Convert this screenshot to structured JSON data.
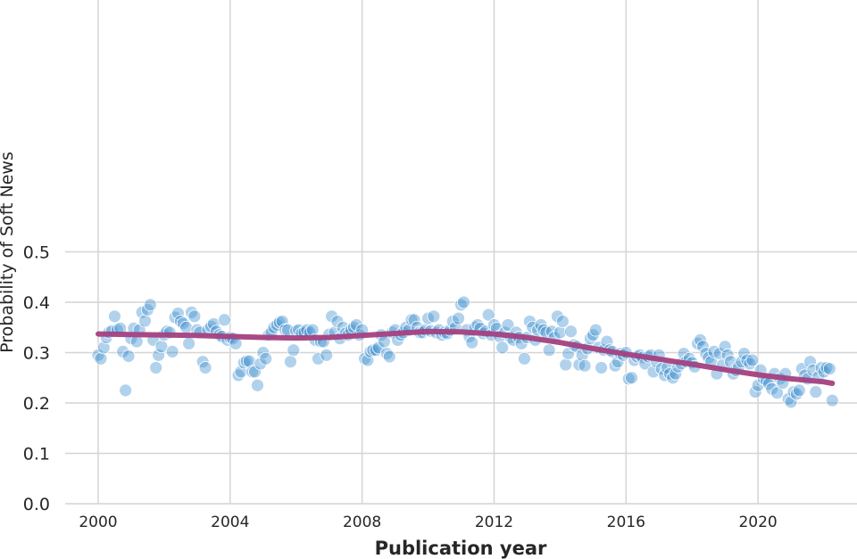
{
  "chart_data": {
    "type": "scatter",
    "title": "",
    "xlabel": "Publication year",
    "ylabel": "Probability of Soft News",
    "xlim": [
      1999.0,
      2023.0
    ],
    "ylim": [
      0.0,
      1.0
    ],
    "grid": true,
    "x_ticks": [
      2000,
      2004,
      2008,
      2012,
      2016,
      2020
    ],
    "y_ticks": [
      0.0,
      0.1,
      0.2,
      0.3,
      0.4,
      0.5
    ],
    "x_tick_labels": [
      "2000",
      "2004",
      "2008",
      "2012",
      "2016",
      "2020"
    ],
    "y_tick_labels": [
      "0.0",
      "0.1",
      "0.2",
      "0.3",
      "0.4",
      "0.5"
    ],
    "colors": {
      "points": "#3b8ed0",
      "trend": "#a4407f",
      "grid": "#d4d4d4"
    },
    "series": [
      {
        "type": "scatter",
        "x": [
          2000.0,
          2000.08,
          2000.17,
          2000.25,
          2000.33,
          2000.42,
          2000.5,
          2000.58,
          2000.67,
          2000.75,
          2000.83,
          2000.92,
          2001.0,
          2001.08,
          2001.17,
          2001.25,
          2001.33,
          2001.42,
          2001.5,
          2001.58,
          2001.67,
          2001.75,
          2001.83,
          2001.92,
          2002.0,
          2002.08,
          2002.17,
          2002.25,
          2002.33,
          2002.42,
          2002.5,
          2002.58,
          2002.67,
          2002.75,
          2002.83,
          2002.92,
          2003.0,
          2003.08,
          2003.17,
          2003.25,
          2003.33,
          2003.42,
          2003.5,
          2003.58,
          2003.67,
          2003.75,
          2003.83,
          2003.92,
          2004.0,
          2004.08,
          2004.17,
          2004.25,
          2004.33,
          2004.42,
          2004.5,
          2004.58,
          2004.67,
          2004.75,
          2004.83,
          2004.92,
          2005.0,
          2005.08,
          2005.17,
          2005.25,
          2005.33,
          2005.42,
          2005.5,
          2005.58,
          2005.67,
          2005.75,
          2005.83,
          2005.92,
          2006.0,
          2006.08,
          2006.17,
          2006.25,
          2006.33,
          2006.42,
          2006.5,
          2006.58,
          2006.67,
          2006.75,
          2006.83,
          2006.92,
          2007.0,
          2007.08,
          2007.17,
          2007.25,
          2007.33,
          2007.42,
          2007.5,
          2007.58,
          2007.67,
          2007.75,
          2007.83,
          2007.92,
          2008.0,
          2008.08,
          2008.17,
          2008.25,
          2008.33,
          2008.42,
          2008.5,
          2008.58,
          2008.67,
          2008.75,
          2008.83,
          2008.92,
          2009.0,
          2009.08,
          2009.17,
          2009.25,
          2009.33,
          2009.42,
          2009.5,
          2009.58,
          2009.67,
          2009.75,
          2009.83,
          2009.92,
          2010.0,
          2010.08,
          2010.17,
          2010.25,
          2010.33,
          2010.42,
          2010.5,
          2010.58,
          2010.67,
          2010.75,
          2010.83,
          2010.92,
          2011.0,
          2011.08,
          2011.17,
          2011.25,
          2011.33,
          2011.42,
          2011.5,
          2011.58,
          2011.67,
          2011.75,
          2011.83,
          2011.92,
          2012.0,
          2012.08,
          2012.17,
          2012.25,
          2012.33,
          2012.42,
          2012.5,
          2012.58,
          2012.67,
          2012.75,
          2012.83,
          2012.92,
          2013.0,
          2013.08,
          2013.17,
          2013.25,
          2013.33,
          2013.42,
          2013.5,
          2013.58,
          2013.67,
          2013.75,
          2013.83,
          2013.92,
          2014.0,
          2014.08,
          2014.17,
          2014.25,
          2014.33,
          2014.42,
          2014.5,
          2014.58,
          2014.67,
          2014.75,
          2014.83,
          2014.92,
          2015.0,
          2015.08,
          2015.17,
          2015.25,
          2015.33,
          2015.42,
          2015.5,
          2015.58,
          2015.67,
          2015.75,
          2015.83,
          2015.92,
          2016.0,
          2016.08,
          2016.17,
          2016.25,
          2016.33,
          2016.42,
          2016.5,
          2016.58,
          2016.67,
          2016.75,
          2016.83,
          2016.92,
          2017.0,
          2017.08,
          2017.17,
          2017.25,
          2017.33,
          2017.42,
          2017.5,
          2017.58,
          2017.67,
          2017.75,
          2017.83,
          2017.92,
          2018.0,
          2018.08,
          2018.17,
          2018.25,
          2018.33,
          2018.42,
          2018.5,
          2018.58,
          2018.67,
          2018.75,
          2018.83,
          2018.92,
          2019.0,
          2019.08,
          2019.17,
          2019.25,
          2019.33,
          2019.42,
          2019.5,
          2019.58,
          2019.67,
          2019.75,
          2019.83,
          2019.92,
          2020.0,
          2020.08,
          2020.17,
          2020.25,
          2020.33,
          2020.42,
          2020.5,
          2020.58,
          2020.67,
          2020.75,
          2020.83,
          2020.92,
          2021.0,
          2021.08,
          2021.17,
          2021.25,
          2021.33,
          2021.42,
          2021.5,
          2021.58,
          2021.67,
          2021.75,
          2021.83,
          2021.92,
          2022.0,
          2022.08,
          2022.17,
          2022.25
        ],
        "y": [
          0.295,
          0.288,
          0.31,
          0.33,
          0.34,
          0.343,
          0.372,
          0.345,
          0.348,
          0.302,
          0.225,
          0.293,
          0.328,
          0.348,
          0.322,
          0.345,
          0.38,
          0.363,
          0.385,
          0.395,
          0.325,
          0.27,
          0.295,
          0.312,
          0.335,
          0.342,
          0.34,
          0.302,
          0.37,
          0.378,
          0.362,
          0.358,
          0.35,
          0.318,
          0.38,
          0.372,
          0.345,
          0.34,
          0.282,
          0.27,
          0.345,
          0.352,
          0.357,
          0.342,
          0.335,
          0.332,
          0.365,
          0.325,
          0.33,
          0.328,
          0.318,
          0.255,
          0.262,
          0.28,
          0.283,
          0.283,
          0.262,
          0.262,
          0.235,
          0.278,
          0.3,
          0.288,
          0.335,
          0.34,
          0.35,
          0.355,
          0.36,
          0.362,
          0.345,
          0.345,
          0.282,
          0.305,
          0.343,
          0.345,
          0.338,
          0.34,
          0.345,
          0.34,
          0.345,
          0.325,
          0.288,
          0.322,
          0.322,
          0.295,
          0.336,
          0.372,
          0.34,
          0.362,
          0.328,
          0.35,
          0.338,
          0.335,
          0.345,
          0.35,
          0.355,
          0.335,
          0.345,
          0.288,
          0.285,
          0.302,
          0.305,
          0.305,
          0.31,
          0.335,
          0.322,
          0.298,
          0.292,
          0.34,
          0.345,
          0.325,
          0.335,
          0.34,
          0.35,
          0.345,
          0.365,
          0.365,
          0.35,
          0.34,
          0.34,
          0.345,
          0.368,
          0.343,
          0.372,
          0.34,
          0.345,
          0.335,
          0.34,
          0.338,
          0.345,
          0.362,
          0.35,
          0.368,
          0.395,
          0.4,
          0.345,
          0.332,
          0.32,
          0.35,
          0.355,
          0.348,
          0.338,
          0.342,
          0.375,
          0.335,
          0.355,
          0.348,
          0.332,
          0.31,
          0.34,
          0.355,
          0.33,
          0.325,
          0.34,
          0.33,
          0.318,
          0.288,
          0.33,
          0.362,
          0.35,
          0.325,
          0.345,
          0.355,
          0.345,
          0.34,
          0.305,
          0.342,
          0.33,
          0.372,
          0.34,
          0.362,
          0.276,
          0.298,
          0.342,
          0.315,
          0.312,
          0.276,
          0.295,
          0.274,
          0.308,
          0.328,
          0.335,
          0.345,
          0.31,
          0.27,
          0.305,
          0.322,
          0.305,
          0.302,
          0.274,
          0.282,
          0.298,
          0.295,
          0.3,
          0.248,
          0.25,
          0.285,
          0.292,
          0.295,
          0.29,
          0.278,
          0.292,
          0.295,
          0.262,
          0.282,
          0.295,
          0.268,
          0.255,
          0.27,
          0.258,
          0.25,
          0.258,
          0.272,
          0.278,
          0.298,
          0.282,
          0.288,
          0.28,
          0.272,
          0.318,
          0.325,
          0.312,
          0.298,
          0.29,
          0.282,
          0.302,
          0.258,
          0.298,
          0.275,
          0.312,
          0.295,
          0.282,
          0.258,
          0.265,
          0.272,
          0.282,
          0.298,
          0.285,
          0.278,
          0.285,
          0.222,
          0.235,
          0.265,
          0.248,
          0.245,
          0.238,
          0.228,
          0.258,
          0.22,
          0.248,
          0.24,
          0.258,
          0.208,
          0.202,
          0.222,
          0.218,
          0.225,
          0.268,
          0.255,
          0.248,
          0.282,
          0.265,
          0.222,
          0.252,
          0.27,
          0.262,
          0.27,
          0.268,
          0.205
        ]
      },
      {
        "type": "line",
        "x": [
          2000,
          2001,
          2002,
          2003,
          2004,
          2005,
          2006,
          2007,
          2008,
          2009,
          2010,
          2011,
          2012,
          2013,
          2014,
          2015,
          2016,
          2017,
          2018,
          2019,
          2020,
          2021,
          2022,
          2022.25
        ],
        "y": [
          0.337,
          0.336,
          0.335,
          0.334,
          0.332,
          0.33,
          0.329,
          0.33,
          0.334,
          0.338,
          0.342,
          0.341,
          0.337,
          0.33,
          0.32,
          0.308,
          0.297,
          0.287,
          0.277,
          0.266,
          0.256,
          0.248,
          0.242,
          0.239
        ]
      }
    ]
  }
}
